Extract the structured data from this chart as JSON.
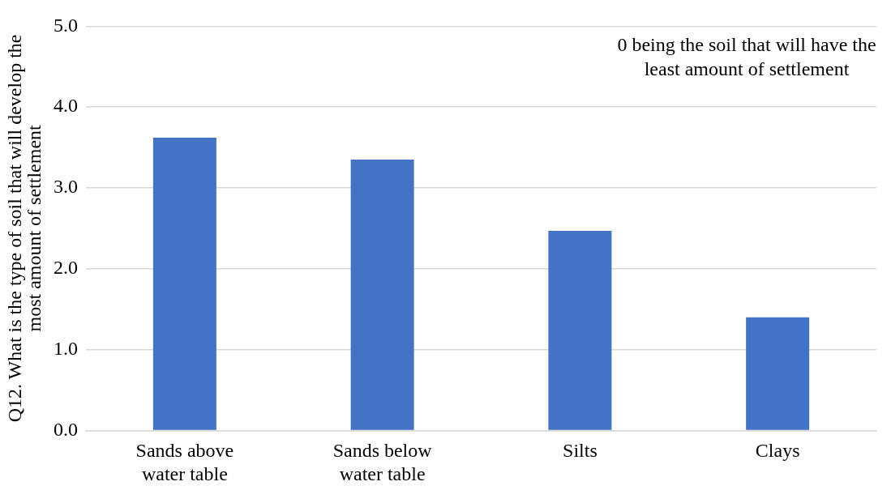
{
  "chart_data": {
    "type": "bar",
    "ylabel": "Q12. What is the type of soil that will develop the most amount of settlement",
    "categories": [
      "Sands above water table",
      "Sands below water table",
      "Silts",
      "Clays"
    ],
    "values": [
      3.62,
      3.35,
      2.47,
      1.4
    ],
    "color": "#4472c4",
    "ylim": [
      0,
      5
    ],
    "yticks": [
      {
        "value": 0,
        "label": "0.0"
      },
      {
        "value": 1,
        "label": "1.0"
      },
      {
        "value": 2,
        "label": "2.0"
      },
      {
        "value": 3,
        "label": "3.0"
      },
      {
        "value": 4,
        "label": "4.0"
      },
      {
        "value": 5,
        "label": "5.0"
      }
    ],
    "grid": "y",
    "legend": false,
    "annotations": [
      "0 being the soil that will have the least amount of settlement"
    ]
  }
}
